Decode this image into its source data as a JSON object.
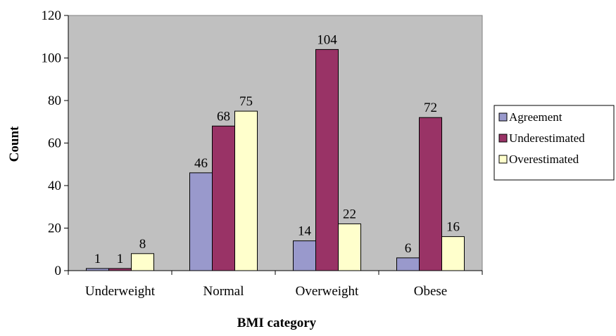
{
  "chart_data": {
    "type": "bar",
    "categories": [
      "Underweight",
      "Normal",
      "Overweight",
      "Obese"
    ],
    "series": [
      {
        "name": "Agreement",
        "values": [
          1,
          46,
          14,
          6
        ],
        "color": "#9999cc"
      },
      {
        "name": "Underestimated",
        "values": [
          1,
          68,
          104,
          72
        ],
        "color": "#993366"
      },
      {
        "name": "Overestimated",
        "values": [
          8,
          75,
          22,
          16
        ],
        "color": "#ffffcc"
      }
    ],
    "xlabel": "BMI category",
    "ylabel": "Count",
    "ylim": [
      0,
      120
    ],
    "yticks": [
      0,
      20,
      40,
      60,
      80,
      100,
      120
    ],
    "plot_background": "#c0c0c0",
    "grid": false,
    "legend_position": "right"
  }
}
